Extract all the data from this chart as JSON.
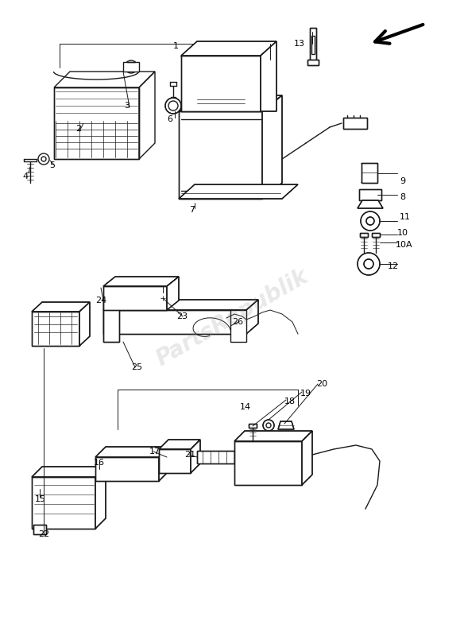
{
  "bg_color": "#ffffff",
  "line_color": "#1a1a1a",
  "watermark_text": "PartsRepublik",
  "watermark_alpha": 0.18,
  "figsize": [
    5.84,
    8.0
  ],
  "dpi": 100
}
